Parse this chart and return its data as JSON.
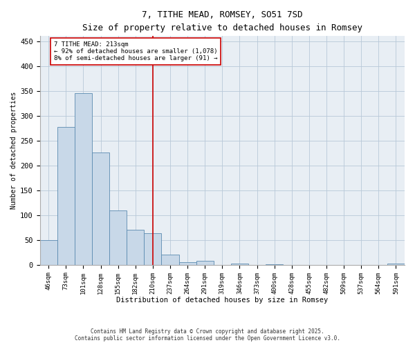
{
  "title_line1": "7, TITHE MEAD, ROMSEY, SO51 7SD",
  "title_line2": "Size of property relative to detached houses in Romsey",
  "xlabel": "Distribution of detached houses by size in Romsey",
  "ylabel": "Number of detached properties",
  "categories": [
    "46sqm",
    "73sqm",
    "101sqm",
    "128sqm",
    "155sqm",
    "182sqm",
    "210sqm",
    "237sqm",
    "264sqm",
    "291sqm",
    "319sqm",
    "346sqm",
    "373sqm",
    "400sqm",
    "428sqm",
    "455sqm",
    "482sqm",
    "509sqm",
    "537sqm",
    "564sqm",
    "591sqm"
  ],
  "values": [
    50,
    277,
    345,
    226,
    110,
    70,
    63,
    21,
    5,
    8,
    0,
    2,
    0,
    1,
    0,
    0,
    0,
    0,
    0,
    0,
    2
  ],
  "bar_color": "#c8d8e8",
  "bar_edge_color": "#5a8ab0",
  "vline_color": "#cc0000",
  "annotation_text": "7 TITHE MEAD: 213sqm\n← 92% of detached houses are smaller (1,078)\n8% of semi-detached houses are larger (91) →",
  "annotation_box_color": "#ffffff",
  "annotation_box_edge": "#cc0000",
  "ylim": [
    0,
    460
  ],
  "yticks": [
    0,
    50,
    100,
    150,
    200,
    250,
    300,
    350,
    400,
    450
  ],
  "background_color": "#e8eef4",
  "footer_line1": "Contains HM Land Registry data © Crown copyright and database right 2025.",
  "footer_line2": "Contains public sector information licensed under the Open Government Licence v3.0."
}
